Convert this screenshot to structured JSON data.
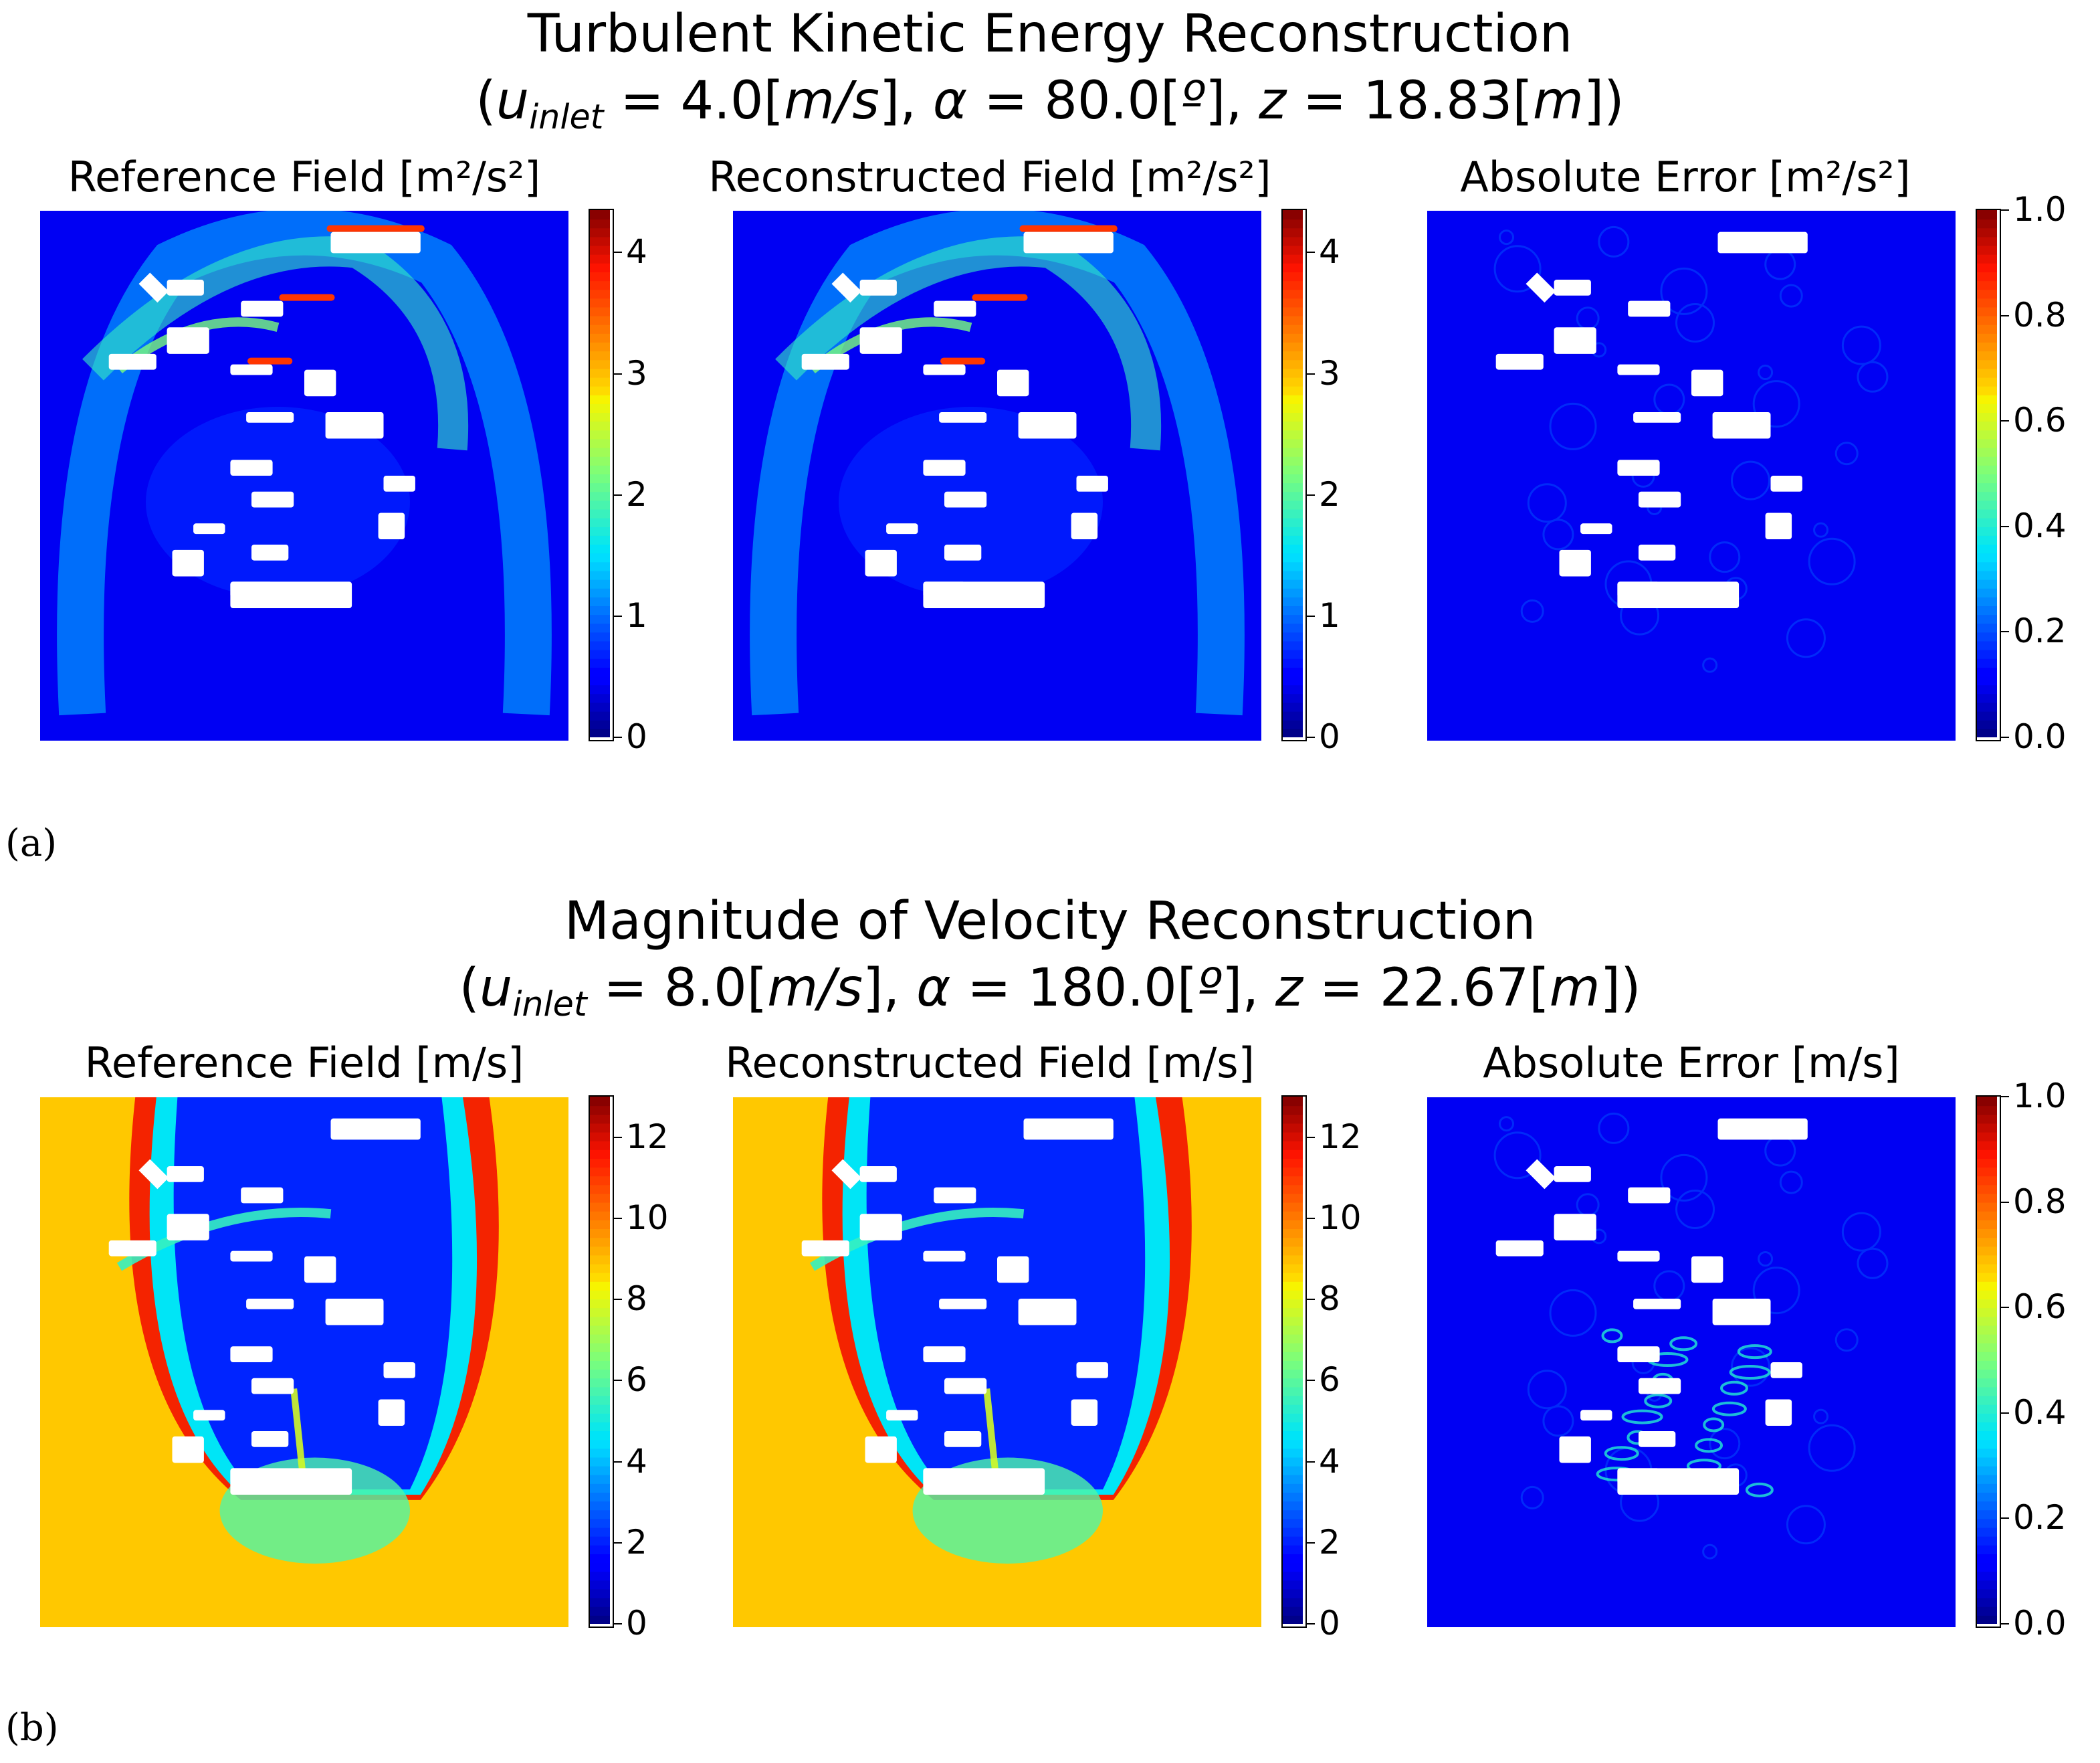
{
  "chart_data": [
    {
      "type": "heatmap",
      "panel_label": "(a)",
      "title_line1": "Turbulent Kinetic Energy Reconstruction",
      "title_line2": "(u_inlet = 4.0[m/s], α = 80.0[º], z = 18.83[m])",
      "title_params": {
        "u_inlet": "4.0",
        "u_unit": "m/s",
        "alpha": "80.0",
        "alpha_unit": "º",
        "z": "18.83",
        "z_unit": "m"
      },
      "colormap": "jet",
      "subplots": [
        {
          "title": "Reference Field",
          "unit": "m²/s²",
          "vmin": 0,
          "vmax": 4.35,
          "ticks": [
            "0",
            "1",
            "2",
            "3",
            "4"
          ],
          "tick_values": [
            0,
            1,
            2,
            3,
            4
          ],
          "kind": "tke"
        },
        {
          "title": "Reconstructed Field",
          "unit": "m²/s²",
          "vmin": 0,
          "vmax": 4.35,
          "ticks": [
            "0",
            "1",
            "2",
            "3",
            "4"
          ],
          "tick_values": [
            0,
            1,
            2,
            3,
            4
          ],
          "kind": "tke"
        },
        {
          "title": "Absolute Error",
          "unit": "m²/s²",
          "vmin": 0,
          "vmax": 1.0,
          "ticks": [
            "0.0",
            "0.2",
            "0.4",
            "0.6",
            "0.8",
            "1.0"
          ],
          "tick_values": [
            0,
            0.2,
            0.4,
            0.6,
            0.8,
            1.0
          ],
          "kind": "error"
        }
      ]
    },
    {
      "type": "heatmap",
      "panel_label": "(b)",
      "title_line1": "Magnitude of Velocity Reconstruction",
      "title_line2": "(u_inlet = 8.0[m/s], α = 180.0[º], z = 22.67[m])",
      "title_params": {
        "u_inlet": "8.0",
        "u_unit": "m/s",
        "alpha": "180.0",
        "alpha_unit": "º",
        "z": "22.67",
        "z_unit": "m"
      },
      "colormap": "jet",
      "subplots": [
        {
          "title": "Reference Field",
          "unit": "m/s",
          "vmin": 0,
          "vmax": 13,
          "ticks": [
            "0",
            "2",
            "4",
            "6",
            "8",
            "10",
            "12"
          ],
          "tick_values": [
            0,
            2,
            4,
            6,
            8,
            10,
            12
          ],
          "kind": "vel"
        },
        {
          "title": "Reconstructed Field",
          "unit": "m/s",
          "vmin": 0,
          "vmax": 13,
          "ticks": [
            "0",
            "2",
            "4",
            "6",
            "8",
            "10",
            "12"
          ],
          "tick_values": [
            0,
            2,
            4,
            6,
            8,
            10,
            12
          ],
          "kind": "vel"
        },
        {
          "title": "Absolute Error",
          "unit": "m/s",
          "vmin": 0,
          "vmax": 1.0,
          "ticks": [
            "0.0",
            "0.2",
            "0.4",
            "0.6",
            "0.8",
            "1.0"
          ],
          "tick_values": [
            0,
            0.2,
            0.4,
            0.6,
            0.8,
            1.0
          ],
          "kind": "error2"
        }
      ]
    }
  ]
}
